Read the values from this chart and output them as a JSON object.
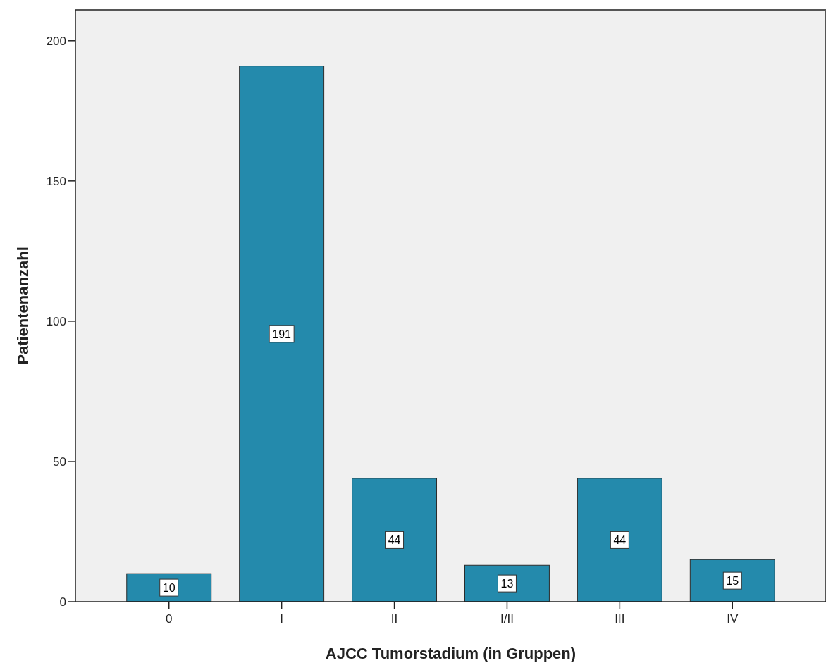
{
  "chart_data": {
    "type": "bar",
    "xlabel": "AJCC Tumorstadium (in Gruppen)",
    "ylabel": "Patientenanzahl",
    "categories": [
      "0",
      "I",
      "II",
      "I/II",
      "III",
      "IV"
    ],
    "values": [
      10,
      191,
      44,
      13,
      44,
      15
    ],
    "color": "#248aac",
    "ylim": [
      0,
      211
    ],
    "yticks": [
      0,
      50,
      100,
      150,
      200
    ],
    "grid": false,
    "data_labels": true
  }
}
